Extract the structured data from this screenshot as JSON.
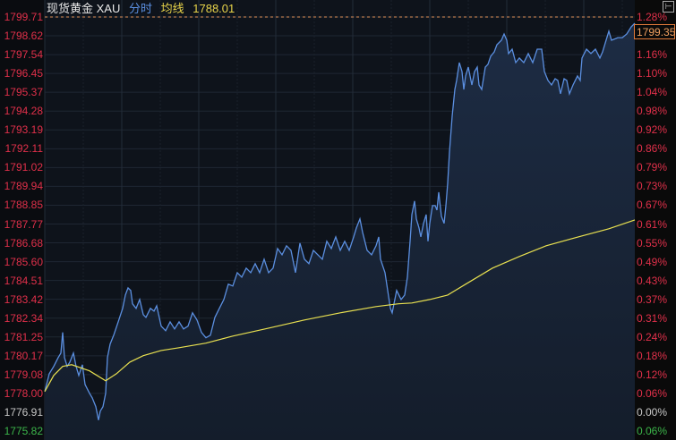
{
  "header": {
    "instrument": "现货黄金 XAU",
    "mode": "分时",
    "avg_label": "均线",
    "avg_value": "1788.01"
  },
  "colors": {
    "up": "#e0304a",
    "down": "#3cb64a",
    "flat": "#c8c8c8",
    "price_line": "#5b8fe0",
    "avg_line": "#e8e050",
    "dashed_high": "#e0905a",
    "background": "#0e131b"
  },
  "current_price_label": "1799.35",
  "toggle_icon": "expand-panel-icon",
  "chart_data": {
    "type": "line",
    "title": "",
    "xlabel": "",
    "ylabel": "",
    "ylim": [
      1775.82,
      1799.71
    ],
    "grid": true,
    "prev_close": 1776.91,
    "high_dashed_line": 1799.71,
    "left_ticks": [
      "1799.71",
      "1798.62",
      "1797.54",
      "1796.45",
      "1795.37",
      "1794.28",
      "1793.19",
      "1792.11",
      "1791.02",
      "1789.94",
      "1788.85",
      "1787.77",
      "1786.68",
      "1785.60",
      "1784.51",
      "1783.42",
      "1782.34",
      "1781.25",
      "1780.17",
      "1779.08",
      "1778.00",
      "1776.91",
      "1775.82"
    ],
    "right_ticks": [
      "1.28%",
      "",
      "1.16%",
      "1.10%",
      "1.04%",
      "0.98%",
      "0.92%",
      "0.86%",
      "0.79%",
      "0.73%",
      "0.67%",
      "0.61%",
      "0.55%",
      "0.49%",
      "0.43%",
      "0.37%",
      "0.31%",
      "0.24%",
      "0.18%",
      "0.12%",
      "0.06%",
      "0.00%",
      "0.06%"
    ],
    "series": [
      {
        "key": "price",
        "x": [
          0,
          5,
          10,
          15,
          18,
          20,
          22,
          25,
          28,
          32,
          35,
          38,
          42,
          45,
          50,
          53,
          57,
          60,
          62,
          65,
          68,
          70,
          73,
          77,
          82,
          87,
          90,
          93,
          96,
          98,
          102,
          106,
          110,
          113,
          118,
          122,
          125,
          130,
          135,
          140,
          145,
          150,
          155,
          160,
          165,
          170,
          175,
          180,
          185,
          190,
          195,
          200,
          205,
          210,
          215,
          220,
          225,
          230,
          235,
          240,
          245,
          250,
          255,
          260,
          265,
          270,
          275,
          280,
          285,
          290,
          295,
          300,
          305,
          310,
          315,
          320,
          325,
          330,
          335,
          340,
          345,
          348,
          352,
          355,
          360,
          365,
          370,
          373,
          375,
          380,
          383,
          386,
          388,
          390,
          393,
          398,
          402,
          405,
          408,
          410,
          413,
          415,
          418,
          420,
          423,
          426,
          428,
          430,
          433,
          436,
          438,
          440,
          443,
          446,
          448,
          450,
          452,
          455,
          458,
          460,
          463,
          466,
          468,
          470,
          473,
          477,
          480,
          483,
          485,
          488,
          492,
          495,
          498,
          502,
          505,
          510,
          513,
          516,
          518,
          522,
          526,
          530,
          535,
          540,
          545,
          550,
          555,
          558,
          562,
          566,
          570,
          573,
          576,
          580,
          583,
          586,
          590,
          595,
          598,
          600,
          605,
          610,
          615,
          620,
          623,
          626,
          630,
          633,
          640,
          645,
          650,
          655,
          659
        ],
        "values": [
          1778.1,
          1779.13,
          1779.55,
          1780.06,
          1780.32,
          1781.51,
          1780.06,
          1779.55,
          1779.8,
          1780.32,
          1779.55,
          1779.03,
          1779.65,
          1778.51,
          1778.0,
          1777.74,
          1777.23,
          1776.45,
          1776.97,
          1777.23,
          1778.0,
          1780.06,
          1780.84,
          1781.35,
          1782.12,
          1782.9,
          1783.67,
          1784.08,
          1783.93,
          1783.16,
          1782.9,
          1783.41,
          1782.54,
          1782.38,
          1782.9,
          1782.74,
          1783.05,
          1781.87,
          1781.61,
          1782.12,
          1781.71,
          1782.12,
          1781.71,
          1781.87,
          1782.64,
          1782.23,
          1781.51,
          1781.2,
          1781.35,
          1782.38,
          1782.9,
          1783.41,
          1784.29,
          1784.19,
          1784.96,
          1784.7,
          1785.22,
          1784.96,
          1785.48,
          1784.96,
          1785.73,
          1784.96,
          1785.22,
          1786.35,
          1785.99,
          1786.51,
          1786.25,
          1784.96,
          1786.66,
          1785.73,
          1785.48,
          1786.25,
          1785.99,
          1785.73,
          1786.77,
          1786.35,
          1787.02,
          1786.25,
          1786.77,
          1786.25,
          1787.02,
          1787.54,
          1788.06,
          1787.28,
          1786.25,
          1785.99,
          1786.51,
          1787.02,
          1785.73,
          1784.96,
          1783.93,
          1782.9,
          1782.64,
          1783.16,
          1783.93,
          1783.41,
          1783.67,
          1784.7,
          1786.77,
          1788.31,
          1789.09,
          1788.06,
          1787.54,
          1787.02,
          1787.8,
          1788.31,
          1786.77,
          1787.8,
          1788.83,
          1788.83,
          1788.57,
          1789.6,
          1788.21,
          1787.8,
          1788.83,
          1790.12,
          1791.92,
          1793.99,
          1795.53,
          1796.05,
          1797.08,
          1796.56,
          1795.53,
          1796.31,
          1796.82,
          1795.79,
          1796.56,
          1796.82,
          1795.79,
          1795.53,
          1796.82,
          1796.98,
          1797.44,
          1797.7,
          1798.11,
          1798.37,
          1798.73,
          1798.37,
          1797.6,
          1797.85,
          1797.08,
          1797.34,
          1797.08,
          1797.6,
          1797.08,
          1797.85,
          1797.85,
          1796.56,
          1796.05,
          1795.79,
          1796.15,
          1796.05,
          1795.28,
          1796.15,
          1796.05,
          1795.28,
          1795.79,
          1796.31,
          1796.05,
          1797.34,
          1797.85,
          1797.6,
          1797.85,
          1797.34,
          1797.7,
          1798.21,
          1798.89,
          1798.37,
          1798.52,
          1798.52,
          1798.73,
          1799.14,
          1799.35
        ]
      },
      {
        "key": "average",
        "name": "均线",
        "x": [
          0,
          10,
          20,
          30,
          50,
          68,
          80,
          95,
          110,
          130,
          150,
          180,
          210,
          250,
          290,
          330,
          370,
          395,
          410,
          430,
          450,
          470,
          500,
          530,
          560,
          600,
          630,
          659
        ],
        "values": [
          1778.1,
          1779.03,
          1779.55,
          1779.65,
          1779.29,
          1778.72,
          1779.13,
          1779.8,
          1780.17,
          1780.47,
          1780.63,
          1780.89,
          1781.3,
          1781.76,
          1782.23,
          1782.64,
          1783.0,
          1783.16,
          1783.21,
          1783.41,
          1783.67,
          1784.29,
          1785.22,
          1785.89,
          1786.51,
          1787.08,
          1787.49,
          1788.0
        ]
      }
    ]
  }
}
